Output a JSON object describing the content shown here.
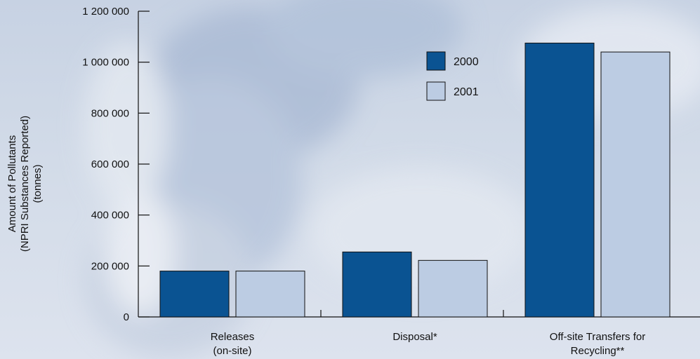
{
  "chart_data": {
    "type": "bar",
    "categories": [
      [
        "Releases",
        "(on-site)"
      ],
      [
        "Disposal*"
      ],
      [
        "Off-site Transfers for",
        "Recycling**"
      ]
    ],
    "series": [
      {
        "name": "2000",
        "values": [
          180000,
          255000,
          1075000
        ]
      },
      {
        "name": "2001",
        "values": [
          180000,
          222000,
          1040000
        ]
      }
    ],
    "ylabel": [
      "Amount of Pollutants",
      "(NPRI Substances Reported)",
      "(tonnes)"
    ],
    "yticks": [
      0,
      200000,
      400000,
      600000,
      800000,
      1000000,
      1200000
    ],
    "ytick_labels": [
      "0",
      "200 000",
      "400 000",
      "600 000",
      "800 000",
      "1 000 000",
      "1 200 000"
    ],
    "ylim": [
      0,
      1200000
    ],
    "legend_position": "top-right",
    "grid": false
  },
  "colors": {
    "series_2000": "#0a5392",
    "series_2001": "#bccce3",
    "axis": "#111111"
  }
}
